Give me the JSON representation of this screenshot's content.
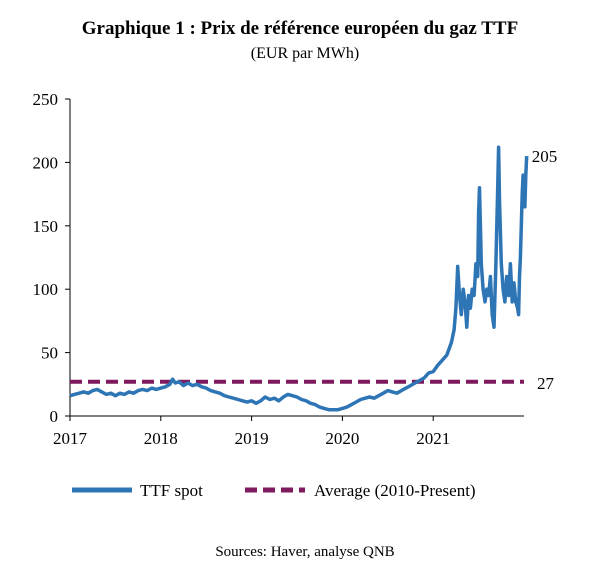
{
  "chart_data": {
    "type": "line",
    "title": "Graphique 1 : Prix de référence européen du gaz TTF",
    "subtitle": "(EUR par MWh)",
    "source": "Sources: Haver, analyse QNB",
    "xlabel": "",
    "ylabel": "",
    "ylim": [
      0,
      250
    ],
    "yticks": [
      "0",
      "50",
      "100",
      "150",
      "200",
      "250"
    ],
    "xlim": [
      2017,
      2022
    ],
    "xticks": [
      "2017",
      "2018",
      "2019",
      "2020",
      "2021"
    ],
    "grid": false,
    "legend_position": "bottom",
    "series": [
      {
        "name": "TTF spot",
        "color": "#2E75B6",
        "style": "solid",
        "end_label": "205",
        "points": [
          [
            2017.0,
            16
          ],
          [
            2017.05,
            17
          ],
          [
            2017.1,
            18
          ],
          [
            2017.15,
            19
          ],
          [
            2017.2,
            18
          ],
          [
            2017.25,
            20
          ],
          [
            2017.3,
            21
          ],
          [
            2017.35,
            19
          ],
          [
            2017.4,
            17
          ],
          [
            2017.45,
            18
          ],
          [
            2017.5,
            16
          ],
          [
            2017.55,
            18
          ],
          [
            2017.6,
            17
          ],
          [
            2017.65,
            19
          ],
          [
            2017.7,
            18
          ],
          [
            2017.75,
            20
          ],
          [
            2017.8,
            21
          ],
          [
            2017.85,
            20
          ],
          [
            2017.9,
            22
          ],
          [
            2017.95,
            21
          ],
          [
            2018.0,
            22
          ],
          [
            2018.05,
            23
          ],
          [
            2018.1,
            25
          ],
          [
            2018.13,
            29
          ],
          [
            2018.16,
            26
          ],
          [
            2018.2,
            27
          ],
          [
            2018.25,
            24
          ],
          [
            2018.3,
            26
          ],
          [
            2018.35,
            24
          ],
          [
            2018.4,
            25
          ],
          [
            2018.45,
            23
          ],
          [
            2018.5,
            22
          ],
          [
            2018.55,
            20
          ],
          [
            2018.6,
            19
          ],
          [
            2018.65,
            18
          ],
          [
            2018.7,
            16
          ],
          [
            2018.75,
            15
          ],
          [
            2018.8,
            14
          ],
          [
            2018.85,
            13
          ],
          [
            2018.9,
            12
          ],
          [
            2018.95,
            11
          ],
          [
            2019.0,
            12
          ],
          [
            2019.05,
            10
          ],
          [
            2019.1,
            12
          ],
          [
            2019.15,
            15
          ],
          [
            2019.2,
            13
          ],
          [
            2019.25,
            14
          ],
          [
            2019.3,
            12
          ],
          [
            2019.35,
            15
          ],
          [
            2019.4,
            17
          ],
          [
            2019.45,
            16
          ],
          [
            2019.5,
            15
          ],
          [
            2019.55,
            13
          ],
          [
            2019.6,
            12
          ],
          [
            2019.65,
            10
          ],
          [
            2019.7,
            9
          ],
          [
            2019.75,
            7
          ],
          [
            2019.8,
            6
          ],
          [
            2019.85,
            5
          ],
          [
            2019.9,
            5
          ],
          [
            2019.95,
            5
          ],
          [
            2020.0,
            6
          ],
          [
            2020.05,
            7
          ],
          [
            2020.1,
            9
          ],
          [
            2020.15,
            11
          ],
          [
            2020.2,
            13
          ],
          [
            2020.25,
            14
          ],
          [
            2020.3,
            15
          ],
          [
            2020.35,
            14
          ],
          [
            2020.4,
            16
          ],
          [
            2020.45,
            18
          ],
          [
            2020.5,
            20
          ],
          [
            2020.55,
            19
          ],
          [
            2020.6,
            18
          ],
          [
            2020.65,
            20
          ],
          [
            2020.7,
            22
          ],
          [
            2020.75,
            24
          ],
          [
            2020.8,
            26
          ],
          [
            2020.85,
            28
          ],
          [
            2020.9,
            30
          ],
          [
            2020.95,
            34
          ],
          [
            2021.0,
            35
          ],
          [
            2021.05,
            40
          ],
          [
            2021.1,
            44
          ],
          [
            2021.15,
            48
          ],
          [
            2021.2,
            58
          ],
          [
            2021.23,
            68
          ],
          [
            2021.25,
            85
          ],
          [
            2021.27,
            118
          ],
          [
            2021.29,
            95
          ],
          [
            2021.31,
            80
          ],
          [
            2021.33,
            100
          ],
          [
            2021.35,
            90
          ],
          [
            2021.37,
            70
          ],
          [
            2021.39,
            95
          ],
          [
            2021.41,
            85
          ],
          [
            2021.43,
            100
          ],
          [
            2021.45,
            95
          ],
          [
            2021.47,
            120
          ],
          [
            2021.49,
            110
          ],
          [
            2021.5,
            160
          ],
          [
            2021.51,
            180
          ],
          [
            2021.53,
            120
          ],
          [
            2021.55,
            100
          ],
          [
            2021.57,
            90
          ],
          [
            2021.59,
            100
          ],
          [
            2021.61,
            95
          ],
          [
            2021.63,
            110
          ],
          [
            2021.65,
            80
          ],
          [
            2021.67,
            70
          ],
          [
            2021.69,
            120
          ],
          [
            2021.71,
            180
          ],
          [
            2021.72,
            212
          ],
          [
            2021.73,
            170
          ],
          [
            2021.75,
            120
          ],
          [
            2021.77,
            100
          ],
          [
            2021.79,
            90
          ],
          [
            2021.81,
            110
          ],
          [
            2021.83,
            95
          ],
          [
            2021.85,
            120
          ],
          [
            2021.87,
            90
          ],
          [
            2021.89,
            105
          ],
          [
            2021.91,
            90
          ],
          [
            2021.93,
            85
          ],
          [
            2021.94,
            80
          ],
          [
            2021.95,
            110
          ],
          [
            2021.96,
            125
          ],
          [
            2021.97,
            150
          ],
          [
            2021.98,
            175
          ],
          [
            2021.99,
            190
          ],
          [
            2022.0,
            185
          ],
          [
            2022.01,
            165
          ],
          [
            2022.02,
            190
          ],
          [
            2022.03,
            205
          ]
        ]
      },
      {
        "name": "Average (2010-Present)",
        "color": "#7F1A5E",
        "style": "dashed",
        "end_label": "27",
        "value": 27
      }
    ]
  }
}
